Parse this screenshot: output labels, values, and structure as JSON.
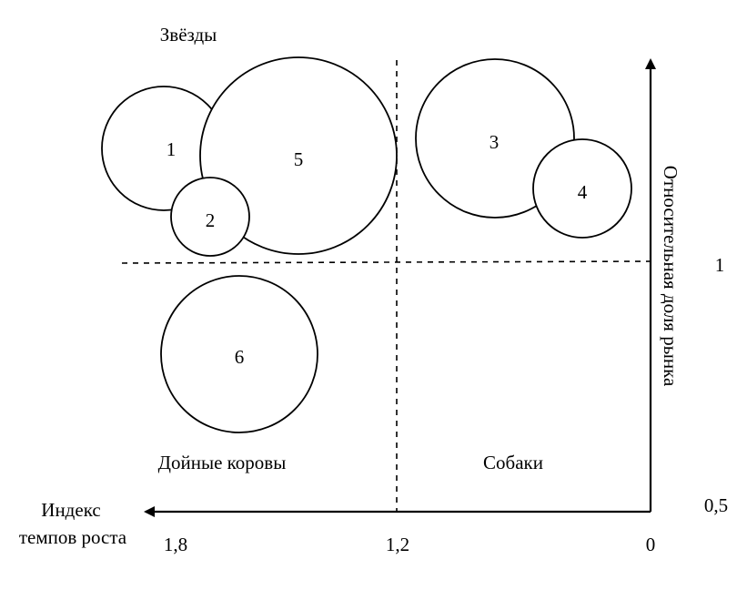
{
  "quadrants": {
    "stars": "Звёзды",
    "cash_cows": "Дойные коровы",
    "dogs": "Собаки"
  },
  "axes": {
    "x_label_line1": "Индекс",
    "x_label_line2": "темпов роста",
    "y_label": "Относительная доля рынка",
    "x_ticks": [
      "1,8",
      "1,2",
      "0"
    ],
    "y_ticks": [
      "1",
      "0,5"
    ]
  },
  "circles": [
    {
      "id": "1",
      "label": "1"
    },
    {
      "id": "2",
      "label": "2"
    },
    {
      "id": "3",
      "label": "3"
    },
    {
      "id": "4",
      "label": "4"
    },
    {
      "id": "5",
      "label": "5"
    },
    {
      "id": "6",
      "label": "6"
    }
  ]
}
